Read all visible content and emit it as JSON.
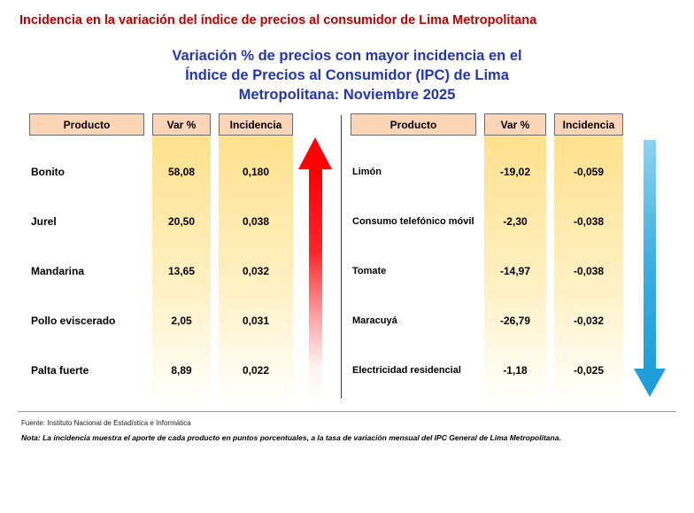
{
  "page_title": "Incidencia en la variación del índice de precios al consumidor de Lima Metropolitana",
  "subtitle": "Variación % de precios con mayor incidencia en el\nÍndice de Precios al Consumidor (IPC) de Lima\nMetropolitana: Noviembre 2025",
  "colors": {
    "title_red": "#C00000",
    "subtitle_blue": "#2136B9",
    "header_fill": "#FBD5B5",
    "column_gradient_top": "#FFE08C",
    "up_arrow_red": "#FF0004",
    "down_arrow_blue": "#1E9FD9"
  },
  "chart_data": {
    "type": "table",
    "title": "Variación % de precios con mayor incidencia en el Índice de Precios al Consumidor (IPC) de Lima Metropolitana: Noviembre 2025",
    "tables": [
      {
        "name": "mayor incidencia positiva",
        "trend": "up",
        "headers": [
          "Producto",
          "Var %",
          "Incidencia"
        ],
        "rows": [
          [
            "Bonito",
            "58,08",
            "0,180"
          ],
          [
            "Jurel",
            "20,50",
            "0,038"
          ],
          [
            "Mandarina",
            "13,65",
            "0,032"
          ],
          [
            "Pollo eviscerado",
            "2,05",
            "0,031"
          ],
          [
            "Palta fuerte",
            "8,89",
            "0,022"
          ]
        ]
      },
      {
        "name": "mayor incidencia negativa",
        "trend": "down",
        "headers": [
          "Producto",
          "Var %",
          "Incidencia"
        ],
        "rows": [
          [
            "Limón",
            "-19,02",
            "-0,059"
          ],
          [
            "Consumo telefónico móvil",
            "-2,30",
            "-0,038"
          ],
          [
            "Tomate",
            "-14,97",
            "-0,038"
          ],
          [
            "Maracuyá",
            "-26,79",
            "-0,032"
          ],
          [
            "Electricidad residencial",
            "-1,18",
            "-0,025"
          ]
        ]
      }
    ]
  },
  "footer": {
    "fuente": "Fuente: Instituto Nacional de Estadística e Informática",
    "nota": "Nota: La incidencia muestra el aporte de cada producto en puntos porcentuales, a la tasa de variación mensual del IPC General de Lima Metropolitana."
  }
}
